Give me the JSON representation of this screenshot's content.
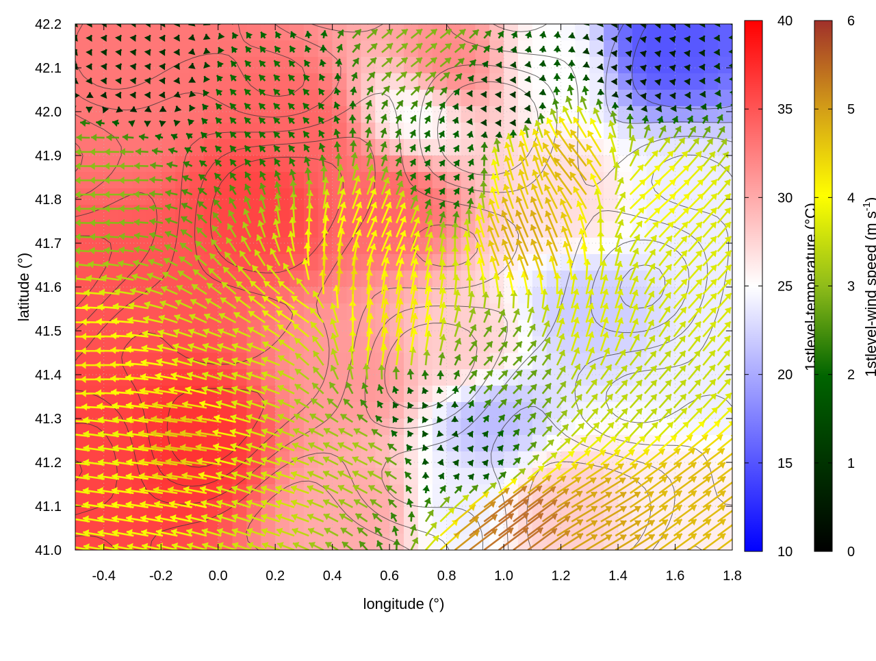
{
  "chart_data": {
    "type": "heatmap",
    "title": "",
    "xlabel": "longitude (°)",
    "ylabel": "latitude (°)",
    "xlim": [
      -0.5,
      1.8
    ],
    "ylim": [
      41.0,
      42.2
    ],
    "xticks": [
      "-0.4",
      "-0.2",
      "0.0",
      "0.2",
      "0.4",
      "0.6",
      "0.8",
      "1.0",
      "1.2",
      "1.4",
      "1.6",
      "1.8"
    ],
    "xtick_values": [
      -0.4,
      -0.2,
      0.0,
      0.2,
      0.4,
      0.6,
      0.8,
      1.0,
      1.2,
      1.4,
      1.6,
      1.8
    ],
    "yticks": [
      "41.0",
      "41.1",
      "41.2",
      "41.3",
      "41.4",
      "41.5",
      "41.6",
      "41.7",
      "41.8",
      "41.9",
      "42.0",
      "42.1",
      "42.2"
    ],
    "ytick_values": [
      41.0,
      41.1,
      41.2,
      41.3,
      41.4,
      41.5,
      41.6,
      41.7,
      41.8,
      41.9,
      42.0,
      42.1,
      42.2
    ],
    "grid": true,
    "colorbars": [
      {
        "label": "1stlevel-temperature (°C)",
        "range": [
          10,
          40
        ],
        "ticks": [
          "10",
          "15",
          "20",
          "25",
          "30",
          "35",
          "40"
        ],
        "tick_values": [
          10,
          15,
          20,
          25,
          30,
          35,
          40
        ],
        "colors": [
          "#0000ff",
          "#ffffff",
          "#ff0000"
        ]
      },
      {
        "label": "1stlevel-wind speed (m s",
        "label_superscript": "-1",
        "label_suffix": ")",
        "range": [
          0,
          6
        ],
        "ticks": [
          "0",
          "1",
          "2",
          "3",
          "4",
          "5",
          "6"
        ],
        "tick_values": [
          0,
          1,
          2,
          3,
          4,
          5,
          6
        ],
        "colors": [
          "#000000",
          "#006400",
          "#8fbc1a",
          "#ffff00",
          "#d4a017",
          "#c07030",
          "#a0302a"
        ]
      }
    ],
    "temperature_field": {
      "description_units": "°C",
      "anchors": [
        {
          "lon": -0.45,
          "lat": 41.25,
          "t": 36
        },
        {
          "lon": -0.1,
          "lat": 41.25,
          "t": 37
        },
        {
          "lon": -0.3,
          "lat": 41.6,
          "t": 35
        },
        {
          "lon": -0.3,
          "lat": 42.0,
          "t": 33
        },
        {
          "lon": 0.15,
          "lat": 41.8,
          "t": 36
        },
        {
          "lon": 0.3,
          "lat": 41.95,
          "t": 34
        },
        {
          "lon": 0.6,
          "lat": 41.8,
          "t": 34
        },
        {
          "lon": 0.8,
          "lat": 42.1,
          "t": 32
        },
        {
          "lon": 0.5,
          "lat": 41.4,
          "t": 31
        },
        {
          "lon": 0.5,
          "lat": 41.1,
          "t": 30
        },
        {
          "lon": 0.85,
          "lat": 41.45,
          "t": 28
        },
        {
          "lon": 0.95,
          "lat": 41.3,
          "t": 21
        },
        {
          "lon": 0.85,
          "lat": 41.1,
          "t": 24
        },
        {
          "lon": 1.3,
          "lat": 41.55,
          "t": 22
        },
        {
          "lon": 1.25,
          "lat": 41.8,
          "t": 27
        },
        {
          "lon": 1.6,
          "lat": 41.8,
          "t": 24
        },
        {
          "lon": 1.55,
          "lat": 42.15,
          "t": 15
        },
        {
          "lon": 1.2,
          "lat": 42.1,
          "t": 25
        },
        {
          "lon": 1.6,
          "lat": 41.1,
          "t": 26
        },
        {
          "lon": 1.2,
          "lat": 41.1,
          "t": 28
        },
        {
          "lon": 1.75,
          "lat": 41.4,
          "t": 24
        },
        {
          "lon": 0.7,
          "lat": 42.0,
          "t": 25
        }
      ]
    },
    "wind_field": {
      "description_units": "m s-1",
      "anchors": [
        {
          "lon": -0.45,
          "lat": 41.4,
          "u": -3.2,
          "v": 0.0
        },
        {
          "lon": -0.3,
          "lat": 41.25,
          "u": -2.8,
          "v": 0.4
        },
        {
          "lon": -0.1,
          "lat": 41.25,
          "u": -3.6,
          "v": 0.5
        },
        {
          "lon": 0.1,
          "lat": 41.4,
          "u": -2.5,
          "v": 0.8
        },
        {
          "lon": -0.4,
          "lat": 41.85,
          "u": -2.0,
          "v": 0.0
        },
        {
          "lon": -0.3,
          "lat": 42.1,
          "u": 0.3,
          "v": 0.4
        },
        {
          "lon": 0.2,
          "lat": 42.0,
          "u": -0.8,
          "v": 0.8
        },
        {
          "lon": 0.3,
          "lat": 41.55,
          "u": -2.5,
          "v": 1.5
        },
        {
          "lon": 0.4,
          "lat": 41.6,
          "u": 0.4,
          "v": 3.6
        },
        {
          "lon": 0.55,
          "lat": 41.7,
          "u": 1.2,
          "v": 2.8
        },
        {
          "lon": 0.6,
          "lat": 41.5,
          "u": 0.6,
          "v": 3.2
        },
        {
          "lon": 0.7,
          "lat": 41.3,
          "u": -0.4,
          "v": 0.7
        },
        {
          "lon": 0.5,
          "lat": 41.2,
          "u": -2.0,
          "v": 1.0
        },
        {
          "lon": 0.2,
          "lat": 41.15,
          "u": -2.5,
          "v": 0.8
        },
        {
          "lon": 0.9,
          "lat": 41.2,
          "u": 0.5,
          "v": 0.6
        },
        {
          "lon": 1.0,
          "lat": 41.05,
          "u": 4.0,
          "v": 3.0
        },
        {
          "lon": 1.3,
          "lat": 41.05,
          "u": 3.4,
          "v": 2.0
        },
        {
          "lon": 1.6,
          "lat": 41.1,
          "u": 3.0,
          "v": 2.2
        },
        {
          "lon": 1.1,
          "lat": 41.7,
          "u": -1.5,
          "v": 3.6
        },
        {
          "lon": 1.25,
          "lat": 41.85,
          "u": -2.4,
          "v": 3.0
        },
        {
          "lon": 1.1,
          "lat": 41.85,
          "u": -1.0,
          "v": 3.4
        },
        {
          "lon": 1.5,
          "lat": 41.8,
          "u": 2.2,
          "v": 2.0
        },
        {
          "lon": 1.7,
          "lat": 41.6,
          "u": 1.8,
          "v": 2.0
        },
        {
          "lon": 1.3,
          "lat": 41.5,
          "u": 0.8,
          "v": 2.6
        },
        {
          "lon": 1.45,
          "lat": 41.35,
          "u": 1.6,
          "v": 1.8
        },
        {
          "lon": 1.0,
          "lat": 41.4,
          "u": 1.2,
          "v": 1.2
        },
        {
          "lon": 1.0,
          "lat": 42.0,
          "u": 0.3,
          "v": 0.4
        },
        {
          "lon": 1.5,
          "lat": 42.1,
          "u": 0.2,
          "v": 0.2
        },
        {
          "lon": 0.7,
          "lat": 42.15,
          "u": 1.5,
          "v": 1.2
        },
        {
          "lon": 0.8,
          "lat": 41.85,
          "u": 0.6,
          "v": 0.8
        }
      ]
    }
  }
}
